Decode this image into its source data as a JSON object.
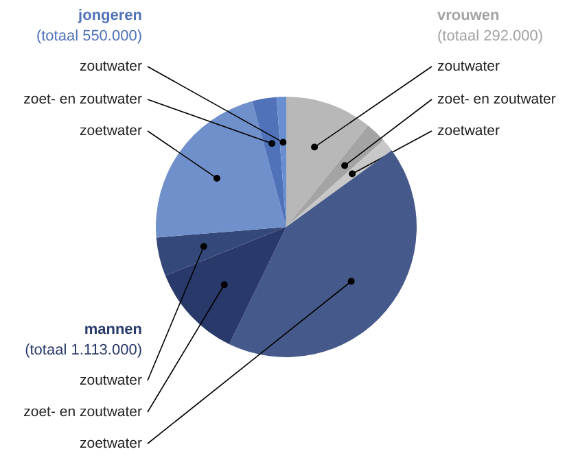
{
  "chart_data": {
    "type": "pie",
    "categories": [
      "zoutwater",
      "zoet- en zoutwater",
      "zoetwater",
      "zoetwater",
      "zoet- en zoutwater",
      "zoutwater",
      "zoetwater",
      "zoet- en zoutwater",
      "zoutwater"
    ],
    "values": [
      10.8,
      2.6,
      1.6,
      42.2,
      11.7,
      4.8,
      22.1,
      3.0,
      1.2
    ],
    "colors": [
      "#b8b8b8",
      "#a4a4a4",
      "#c8c8c8",
      "#455a8a",
      "#28396a",
      "#34497a",
      "#7090cc",
      "#4f72b8",
      "#6a8fd0"
    ],
    "annotations": [
      "jongeren",
      "(totaal 550.000)",
      "vrouwen",
      "(totaal 292.000)",
      "mannen",
      "(totaal 1.113.000)"
    ]
  }
}
